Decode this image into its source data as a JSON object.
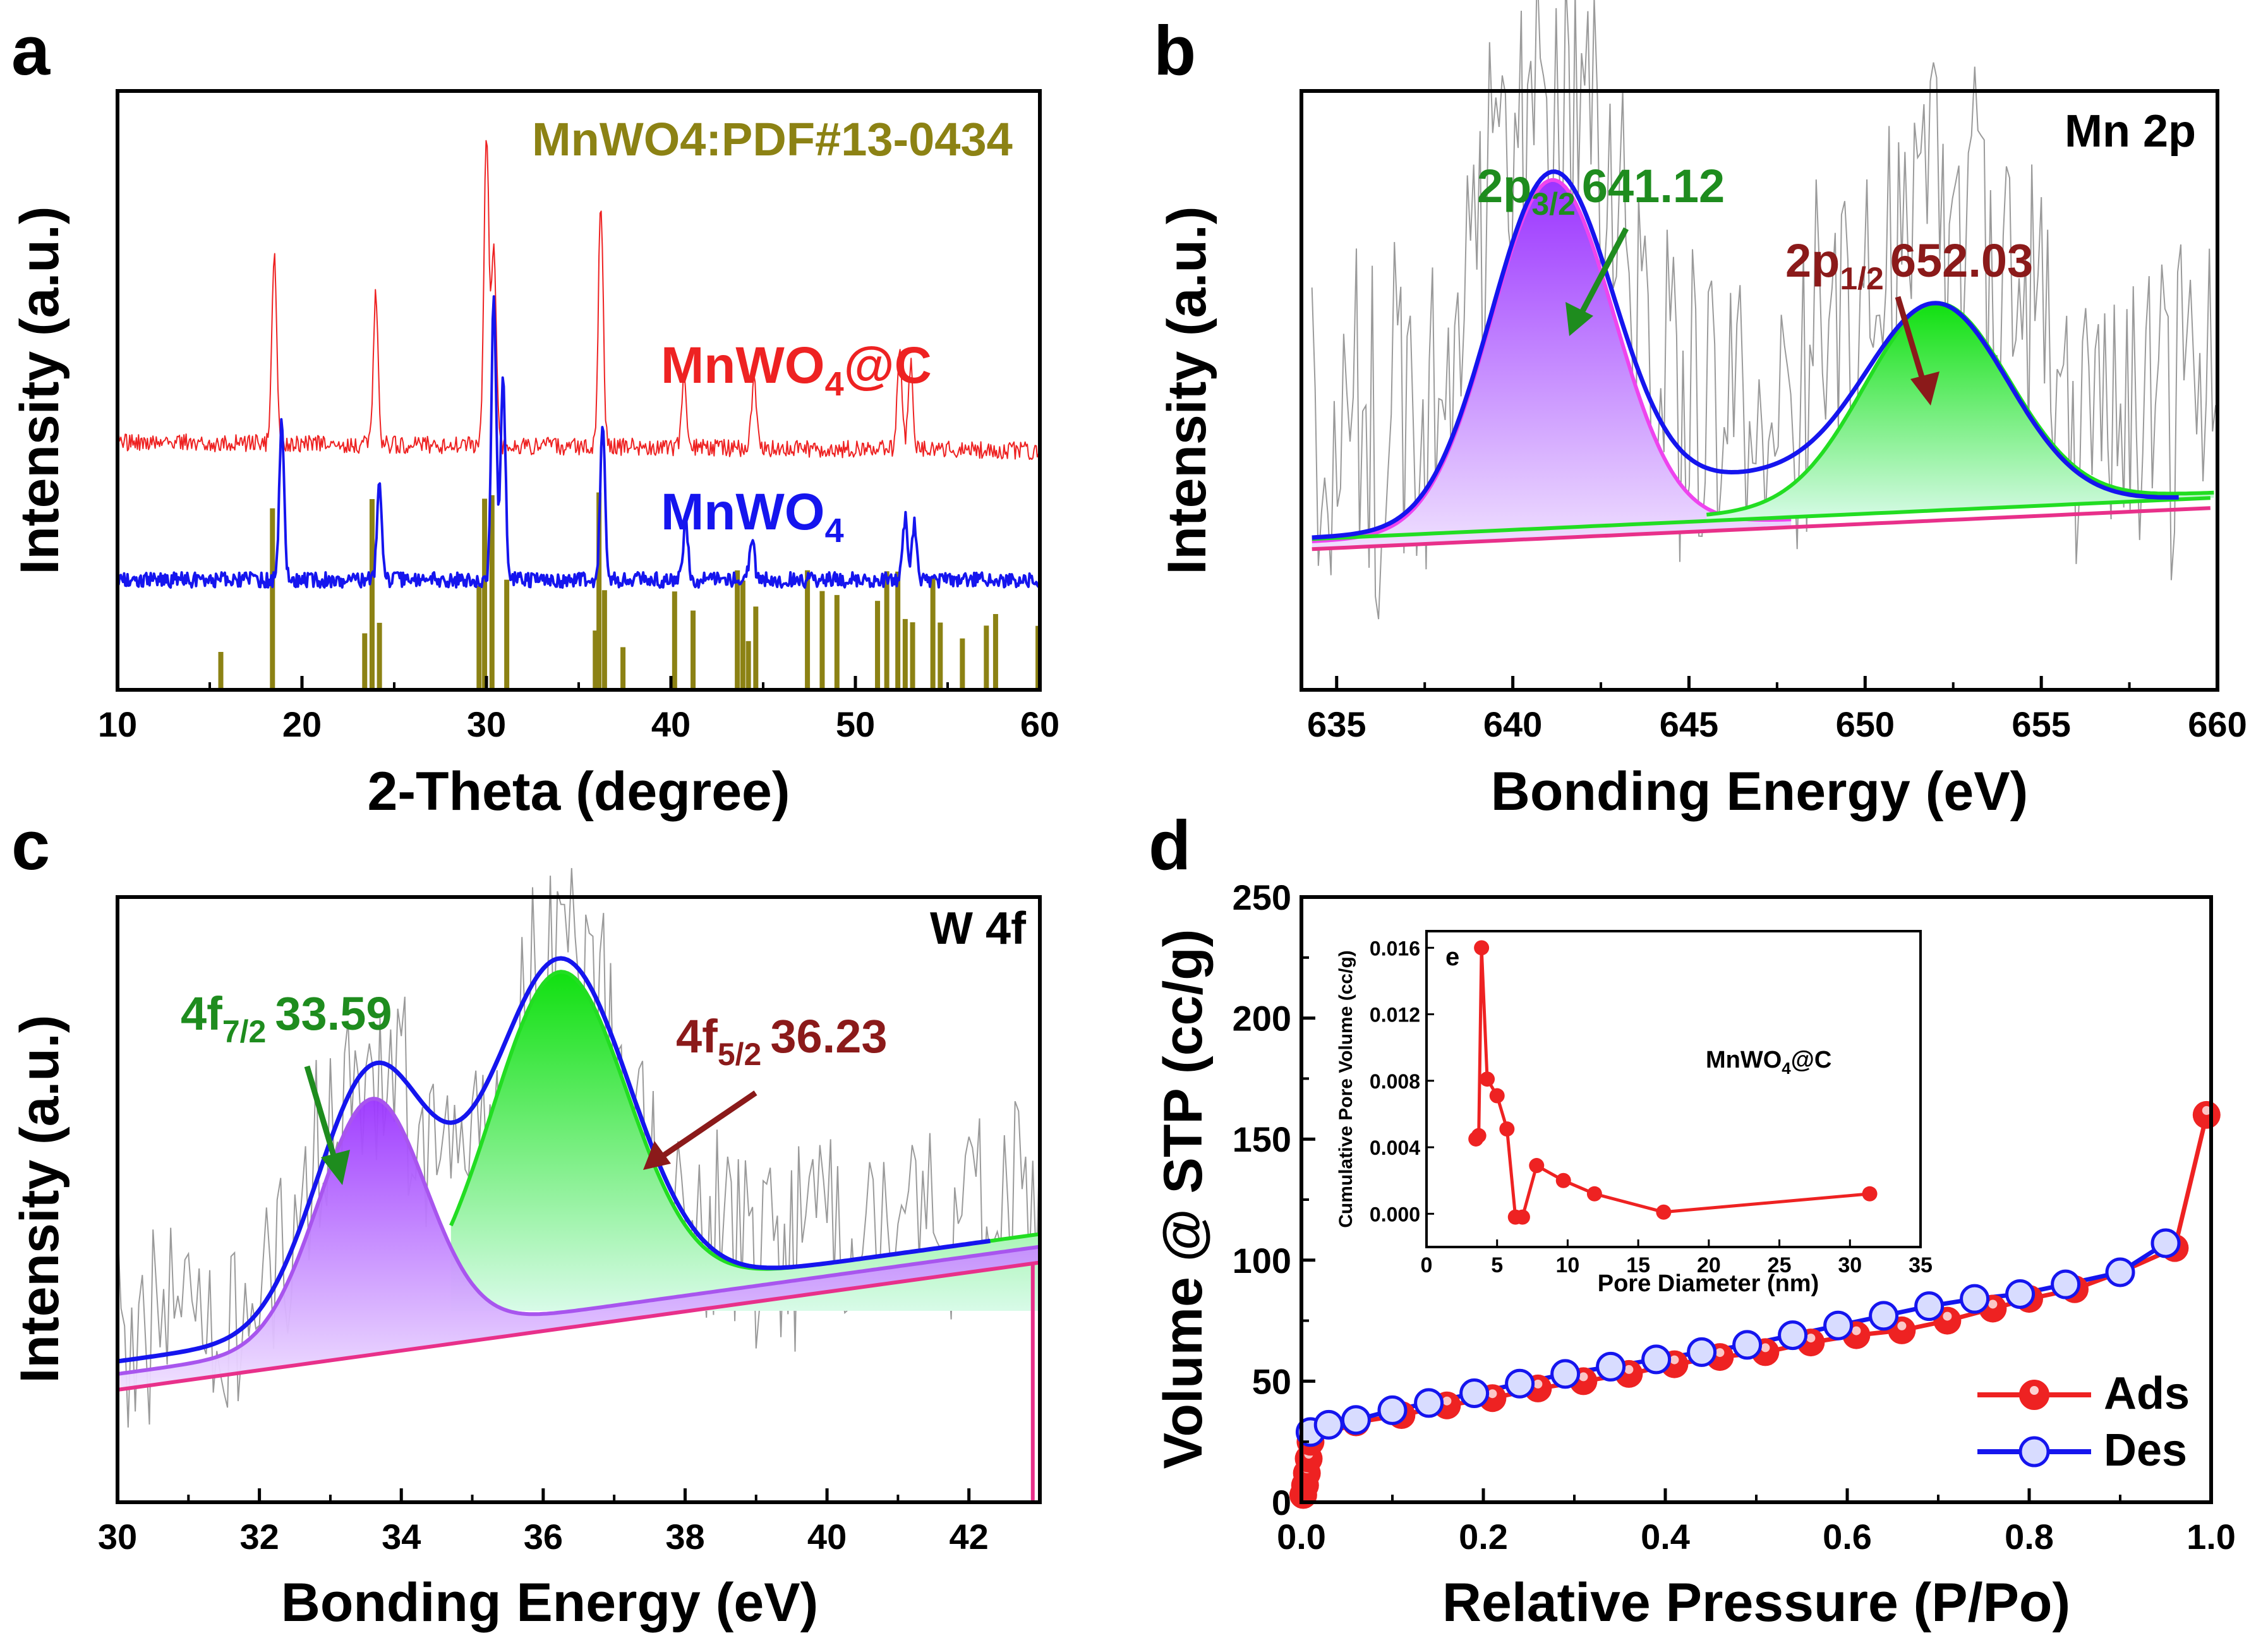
{
  "chart_data": [
    {
      "panel": "a",
      "type": "line",
      "xlabel": "2-Theta (degree)",
      "ylabel": "Intensity (a.u.)",
      "xlim": [
        10,
        60
      ],
      "xticks": [
        "10",
        "20",
        "30",
        "40",
        "50",
        "60"
      ],
      "reference_label": "MnWO4:PDF#13-0434",
      "reference_peaks": [
        15.6,
        18.4,
        23.4,
        23.8,
        24.2,
        29.6,
        29.9,
        30.3,
        31.1,
        35.9,
        36.1,
        36.4,
        37.4,
        40.2,
        41.2,
        43.6,
        43.9,
        44.2,
        44.6,
        47.4,
        48.2,
        49.0,
        51.2,
        51.7,
        52.3,
        52.7,
        53.1,
        54.2,
        54.6,
        55.8,
        57.1,
        57.6,
        59.9
      ],
      "series": [
        {
          "name": "MnWO4@C",
          "name_base": "MnWO",
          "name_sub": "4",
          "name_tail": "@C",
          "color": "#ee2222",
          "peaks": [
            [
              18.5,
              0.55
            ],
            [
              24.0,
              0.45
            ],
            [
              30.0,
              0.92
            ],
            [
              30.4,
              0.6
            ],
            [
              36.2,
              0.72
            ],
            [
              40.7,
              0.2
            ],
            [
              44.5,
              0.2
            ],
            [
              52.4,
              0.3
            ],
            [
              53.0,
              0.25
            ]
          ]
        },
        {
          "name": "MnWO4",
          "name_base": "MnWO",
          "name_sub": "4",
          "name_tail": "",
          "color": "#1515ee",
          "peaks": [
            [
              18.9,
              0.55
            ],
            [
              24.2,
              0.35
            ],
            [
              30.4,
              1.0
            ],
            [
              30.9,
              0.7
            ],
            [
              36.3,
              0.55
            ],
            [
              40.8,
              0.2
            ],
            [
              44.4,
              0.15
            ],
            [
              52.7,
              0.22
            ],
            [
              53.2,
              0.2
            ]
          ]
        }
      ]
    },
    {
      "panel": "b",
      "type": "area",
      "title": "Mn 2p",
      "xlabel": "Bonding Energy (eV)",
      "ylabel": "Intensity (a.u.)",
      "xlim": [
        634,
        660
      ],
      "xticks": [
        "635",
        "640",
        "645",
        "650",
        "655",
        "660"
      ],
      "peaks": [
        {
          "label_base": "2p",
          "label_sub": "3/2",
          "label_value": "641.12",
          "center": 641.12,
          "color": "#1e8c1e"
        },
        {
          "label_base": "2p",
          "label_sub": "1/2",
          "label_value": "652.03",
          "center": 652.03,
          "color": "#8b1a1a"
        }
      ]
    },
    {
      "panel": "c",
      "type": "area",
      "title": "W 4f",
      "xlabel": "Bonding Energy (eV)",
      "ylabel": "Intensity (a.u.)",
      "xlim": [
        30,
        43
      ],
      "xticks": [
        "30",
        "32",
        "34",
        "36",
        "38",
        "40",
        "42"
      ],
      "peaks": [
        {
          "label_base": "4f",
          "label_sub": "7/2",
          "label_value": "33.59",
          "center": 33.59,
          "color": "#1e8c1e"
        },
        {
          "label_base": "4f",
          "label_sub": "5/2",
          "label_value": "36.23",
          "center": 36.23,
          "color": "#8b1a1a"
        }
      ]
    },
    {
      "panel": "d",
      "type": "scatter",
      "xlabel": "Relative Pressure (P/Po)",
      "ylabel": "Volume @ STP (cc/g)",
      "xlim": [
        0,
        1.0
      ],
      "ylim": [
        0,
        250
      ],
      "xticks": [
        "0.0",
        "0.2",
        "0.4",
        "0.6",
        "0.8",
        "1.0"
      ],
      "yticks": [
        "0",
        "50",
        "100",
        "150",
        "200",
        "250"
      ],
      "series": [
        {
          "name": "Ads",
          "color": "#ee2222",
          "x": [
            0.002,
            0.004,
            0.006,
            0.008,
            0.01,
            0.06,
            0.11,
            0.16,
            0.21,
            0.26,
            0.31,
            0.36,
            0.41,
            0.46,
            0.51,
            0.56,
            0.61,
            0.66,
            0.71,
            0.76,
            0.8,
            0.85,
            0.9,
            0.96,
            0.995
          ],
          "y": [
            3,
            7,
            12,
            18,
            25,
            33,
            36,
            40,
            43,
            47,
            50,
            53,
            57,
            60,
            62,
            66,
            69,
            71,
            75,
            80,
            84,
            88,
            95,
            105,
            160
          ]
        },
        {
          "name": "Des",
          "color": "#1515ee",
          "x": [
            0.01,
            0.03,
            0.06,
            0.1,
            0.14,
            0.19,
            0.24,
            0.29,
            0.34,
            0.39,
            0.44,
            0.49,
            0.54,
            0.59,
            0.64,
            0.69,
            0.74,
            0.79,
            0.84,
            0.9,
            0.95
          ],
          "y": [
            29,
            32,
            34,
            38,
            41,
            45,
            49,
            53,
            56,
            59,
            62,
            65,
            69,
            73,
            77,
            81,
            84,
            86,
            90,
            95,
            107
          ]
        }
      ]
    },
    {
      "panel": "e",
      "type": "line",
      "inset_of": "d",
      "annotation_base": "MnWO",
      "annotation_sub": "4",
      "annotation_tail": "@C",
      "xlabel": "Pore Diameter (nm)",
      "ylabel": "Cumulative Pore Volume (cc/g)",
      "xlim": [
        0,
        35
      ],
      "ylim": [
        -0.002,
        0.017
      ],
      "xticks": [
        "0",
        "5",
        "10",
        "15",
        "20",
        "25",
        "30",
        "35"
      ],
      "yticks": [
        "0.000",
        "0.004",
        "0.008",
        "0.012",
        "0.016"
      ],
      "series": [
        {
          "name": "MnWO4@C",
          "color": "#ee2222",
          "x": [
            3.5,
            3.7,
            3.9,
            4.3,
            5.0,
            5.7,
            6.3,
            6.8,
            7.8,
            9.7,
            11.9,
            16.8,
            31.4
          ],
          "y": [
            0.0045,
            0.0047,
            0.016,
            0.0081,
            0.0071,
            0.0051,
            -0.0002,
            -0.0002,
            0.0029,
            0.002,
            0.0012,
            0.0001,
            0.0012
          ]
        }
      ]
    }
  ]
}
